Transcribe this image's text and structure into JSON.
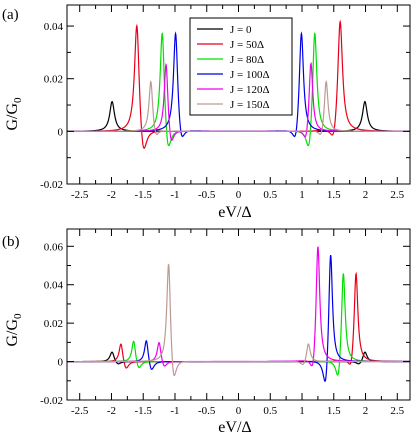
{
  "chart_data": [
    {
      "type": "line",
      "panel_label": "(a)",
      "xlabel": "eV/Δ",
      "ylabel": "G/G",
      "ylabel_sub": "0",
      "xlim": [
        -2.7,
        2.7
      ],
      "ylim": [
        -0.02,
        0.048
      ],
      "xticks": [
        -2.5,
        -2,
        -1.5,
        -1,
        -0.5,
        0,
        0.5,
        1,
        1.5,
        2,
        2.5
      ],
      "xtick_labels": [
        "-2.5",
        "-2",
        "-1.5",
        "-1",
        "-0.5",
        "0",
        "0.5",
        "1",
        "1.5",
        "2",
        "2.5"
      ],
      "yticks": [
        -0.02,
        0,
        0.02,
        0.04
      ],
      "ytick_labels": [
        "-0.02",
        "0",
        "0.02",
        "0.04"
      ],
      "legend": {
        "placement": "top-center"
      },
      "series": [
        {
          "name": "J = 0",
          "color": "#000000",
          "features": [
            {
              "x": -1.99,
              "peak": 0.0113,
              "dip": 0.0,
              "w": 0.045
            },
            {
              "x": 1.99,
              "peak": 0.0113,
              "dip": 0.0,
              "w": 0.045
            }
          ]
        },
        {
          "name": "J = 50Δ",
          "color": "#e8001a",
          "features": [
            {
              "x": -1.6,
              "peak": 0.0438,
              "dip": -0.013,
              "w": 0.045,
              "side": "right"
            },
            {
              "x": 1.6,
              "peak": 0.0438,
              "dip": -0.0075,
              "w": 0.045,
              "side": "left"
            }
          ]
        },
        {
          "name": "J = 80Δ",
          "color": "#00e000",
          "features": [
            {
              "x": -1.2,
              "peak": 0.0405,
              "dip": -0.0115,
              "w": 0.04,
              "side": "right"
            },
            {
              "x": 1.2,
              "peak": 0.0405,
              "dip": -0.0115,
              "w": 0.04,
              "side": "left"
            }
          ]
        },
        {
          "name": "J = 100Δ",
          "color": "#0000e8",
          "features": [
            {
              "x": -0.99,
              "peak": 0.0393,
              "dip": -0.0075,
              "w": 0.04,
              "side": "right"
            },
            {
              "x": 0.99,
              "peak": 0.0393,
              "dip": -0.0075,
              "w": 0.04,
              "side": "left"
            }
          ]
        },
        {
          "name": "J = 120Δ",
          "color": "#ee00ee",
          "features": [
            {
              "x": -1.14,
              "peak": 0.0275,
              "dip": -0.0075,
              "w": 0.035,
              "side": "right"
            },
            {
              "x": 1.14,
              "peak": 0.0275,
              "dip": -0.006,
              "w": 0.035,
              "side": "left"
            }
          ]
        },
        {
          "name": "J = 150Δ",
          "color": "#bc9a94",
          "features": [
            {
              "x": -1.38,
              "peak": 0.02,
              "dip": -0.004,
              "w": 0.035,
              "side": "right"
            },
            {
              "x": 1.38,
              "peak": 0.02,
              "dip": -0.004,
              "w": 0.035,
              "side": "left"
            }
          ]
        }
      ]
    },
    {
      "type": "line",
      "panel_label": "(b)",
      "xlabel": "eV/Δ",
      "ylabel": "G/G",
      "ylabel_sub": "0",
      "xlim": [
        -2.7,
        2.7
      ],
      "ylim": [
        -0.02,
        0.069
      ],
      "xticks": [
        -2.5,
        -2,
        -1.5,
        -1,
        -0.5,
        0,
        0.5,
        1,
        1.5,
        2,
        2.5
      ],
      "xtick_labels": [
        "-2.5",
        "-2",
        "-1.5",
        "-1",
        "-0.5",
        "0",
        "0.5",
        "1",
        "1.5",
        "2",
        "2.5"
      ],
      "yticks": [
        -0.02,
        0,
        0.02,
        0.04,
        0.06
      ],
      "ytick_labels": [
        "-0.02",
        "0",
        "0.02",
        "0.04",
        "0.06"
      ],
      "series": [
        {
          "color": "#000000",
          "features": [
            {
              "x": -1.99,
              "peak": 0.0055,
              "dip": -0.002,
              "w": 0.04,
              "side": "right"
            },
            {
              "x": 1.99,
              "peak": 0.0055,
              "dip": -0.002,
              "w": 0.04,
              "side": "left"
            }
          ]
        },
        {
          "color": "#e8001a",
          "features": [
            {
              "x": -1.85,
              "peak": 0.0105,
              "dip": -0.005,
              "w": 0.035,
              "side": "right"
            },
            {
              "x": 1.85,
              "peak": 0.048,
              "dip": -0.008,
              "w": 0.035,
              "side": "left"
            }
          ]
        },
        {
          "color": "#00e000",
          "features": [
            {
              "x": -1.65,
              "peak": 0.012,
              "dip": -0.005,
              "w": 0.035,
              "side": "right"
            },
            {
              "x": 1.65,
              "peak": 0.05,
              "dip": -0.0145,
              "w": 0.035,
              "side": "left"
            }
          ]
        },
        {
          "color": "#0000e8",
          "features": [
            {
              "x": -1.45,
              "peak": 0.0125,
              "dip": -0.006,
              "w": 0.035,
              "side": "right"
            },
            {
              "x": 1.45,
              "peak": 0.061,
              "dip": -0.0195,
              "w": 0.035,
              "side": "left"
            }
          ]
        },
        {
          "color": "#ee00ee",
          "features": [
            {
              "x": -1.25,
              "peak": 0.011,
              "dip": -0.004,
              "w": 0.035,
              "side": "right"
            },
            {
              "x": 1.25,
              "peak": 0.063,
              "dip": -0.011,
              "w": 0.035,
              "side": "left"
            }
          ]
        },
        {
          "color": "#bc9a94",
          "features": [
            {
              "x": -1.1,
              "peak": 0.055,
              "dip": -0.0155,
              "w": 0.035,
              "side": "right"
            },
            {
              "x": 1.1,
              "peak": 0.01,
              "dip": -0.003,
              "w": 0.035,
              "side": "left"
            }
          ]
        }
      ]
    }
  ]
}
